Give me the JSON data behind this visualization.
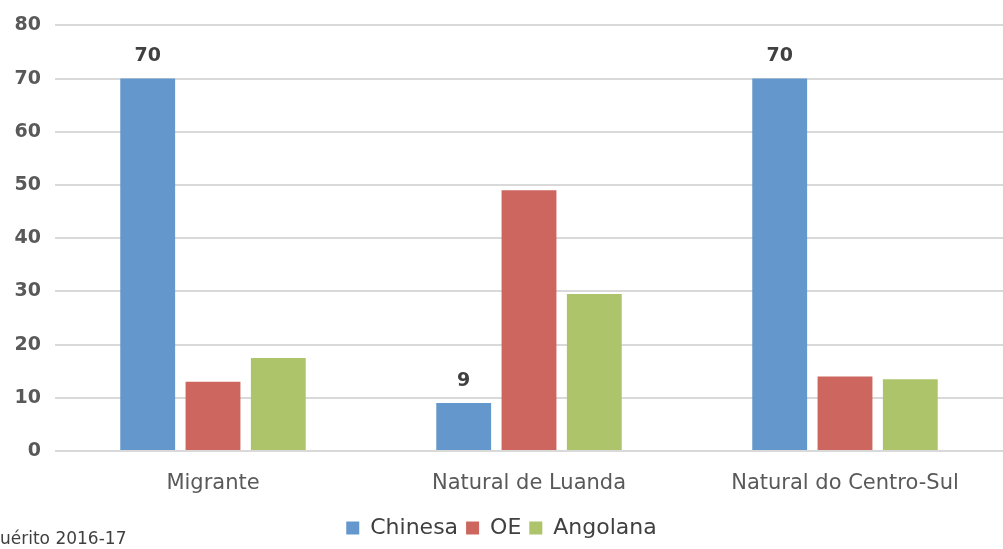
{
  "chart_data": {
    "type": "bar",
    "categories": [
      "Migrante",
      "Natural de Luanda",
      "Natural do Centro-Sul"
    ],
    "series": [
      {
        "name": "Chinesa",
        "color": "#6497cb",
        "values": [
          70,
          9,
          70
        ],
        "value_labels": [
          "70",
          "9",
          "70"
        ]
      },
      {
        "name": "OE",
        "color": "#cd665f",
        "values": [
          13,
          49,
          14
        ]
      },
      {
        "name": "Angolana",
        "color": "#adc46b",
        "values": [
          17.5,
          29.5,
          13.5
        ]
      }
    ],
    "ylim": [
      0,
      80
    ],
    "yticks": [
      0,
      10,
      20,
      30,
      40,
      50,
      60,
      70,
      80
    ],
    "grid": "y",
    "legend": "bottom",
    "annotations": [
      "uérito 2016-17"
    ]
  }
}
